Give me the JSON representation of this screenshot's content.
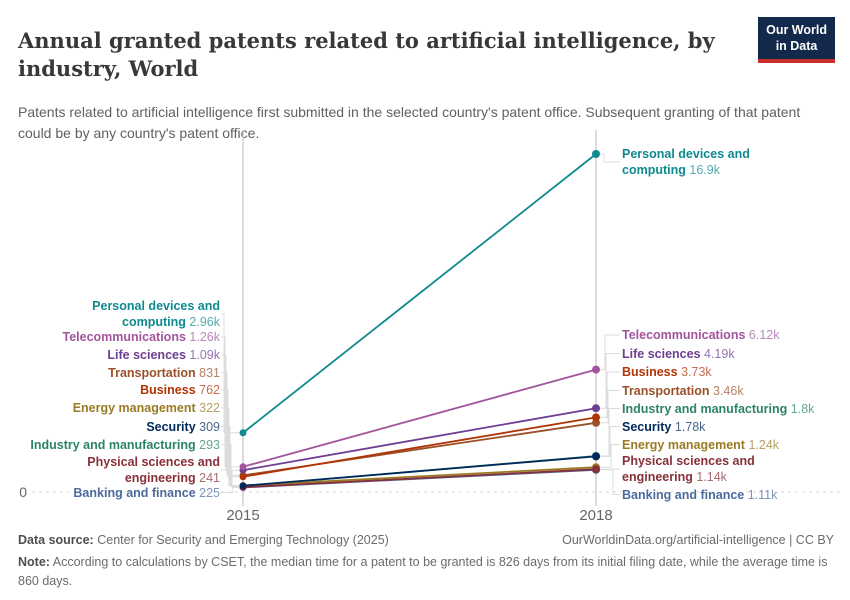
{
  "header": {
    "title": "Annual granted patents related to artificial intelligence, by industry, World",
    "subtitle": "Patents related to artificial intelligence first submitted in the selected country's patent office. Subsequent granting of that patent could be by any country's patent office.",
    "logo": {
      "line1": "Our World",
      "line2": "in Data",
      "bg_color": "#12294B",
      "bar_color": "#C7302B"
    }
  },
  "chart_data": {
    "type": "line",
    "x": [
      "2015",
      "2018"
    ],
    "ylim": [
      0,
      16900
    ],
    "zero_label": "0",
    "grid": "zero-line-dashed",
    "legend_position": "inline-labels-both-sides",
    "series": [
      {
        "name": "Personal devices and computing",
        "color": "#0F8A8F",
        "values": [
          2960,
          16900
        ],
        "value_labels": [
          "2.96k",
          "16.9k"
        ]
      },
      {
        "name": "Telecommunications",
        "color": "#A2559C",
        "values": [
          1260,
          6120
        ],
        "value_labels": [
          "1.26k",
          "6.12k"
        ]
      },
      {
        "name": "Life sciences",
        "color": "#6D3E91",
        "values": [
          1090,
          4190
        ],
        "value_labels": [
          "1.09k",
          "4.19k"
        ]
      },
      {
        "name": "Transportation",
        "color": "#9A5129",
        "values": [
          831,
          3460
        ],
        "value_labels": [
          "831",
          "3.46k"
        ]
      },
      {
        "name": "Business",
        "color": "#B13507",
        "values": [
          762,
          3730
        ],
        "value_labels": [
          "762",
          "3.73k"
        ]
      },
      {
        "name": "Energy management",
        "color": "#9A7B25",
        "values": [
          322,
          1240
        ],
        "value_labels": [
          "322",
          "1.24k"
        ]
      },
      {
        "name": "Security",
        "color": "#00295B",
        "values": [
          309,
          1780
        ],
        "value_labels": [
          "309",
          "1.78k"
        ]
      },
      {
        "name": "Industry and manufacturing",
        "color": "#2C8465",
        "values": [
          293,
          1800
        ],
        "value_labels": [
          "293",
          "1.8k"
        ]
      },
      {
        "name": "Physical sciences and engineering",
        "color": "#883039",
        "values": [
          241,
          1140
        ],
        "value_labels": [
          "241",
          "1.14k"
        ]
      },
      {
        "name": "Banking and finance",
        "color": "#4C6A9C",
        "values": [
          225,
          1110
        ],
        "value_labels": [
          "225",
          "1.11k"
        ]
      }
    ]
  },
  "footer": {
    "datasource_label": "Data source:",
    "datasource": "Center for Security and Emerging Technology (2025)",
    "link": "OurWorldinData.org/artificial-intelligence | CC BY",
    "note_label": "Note:",
    "note": "According to calculations by CSET, the median time for a patent to be granted is 826 days from its initial filing date, while the average time is 860 days."
  }
}
